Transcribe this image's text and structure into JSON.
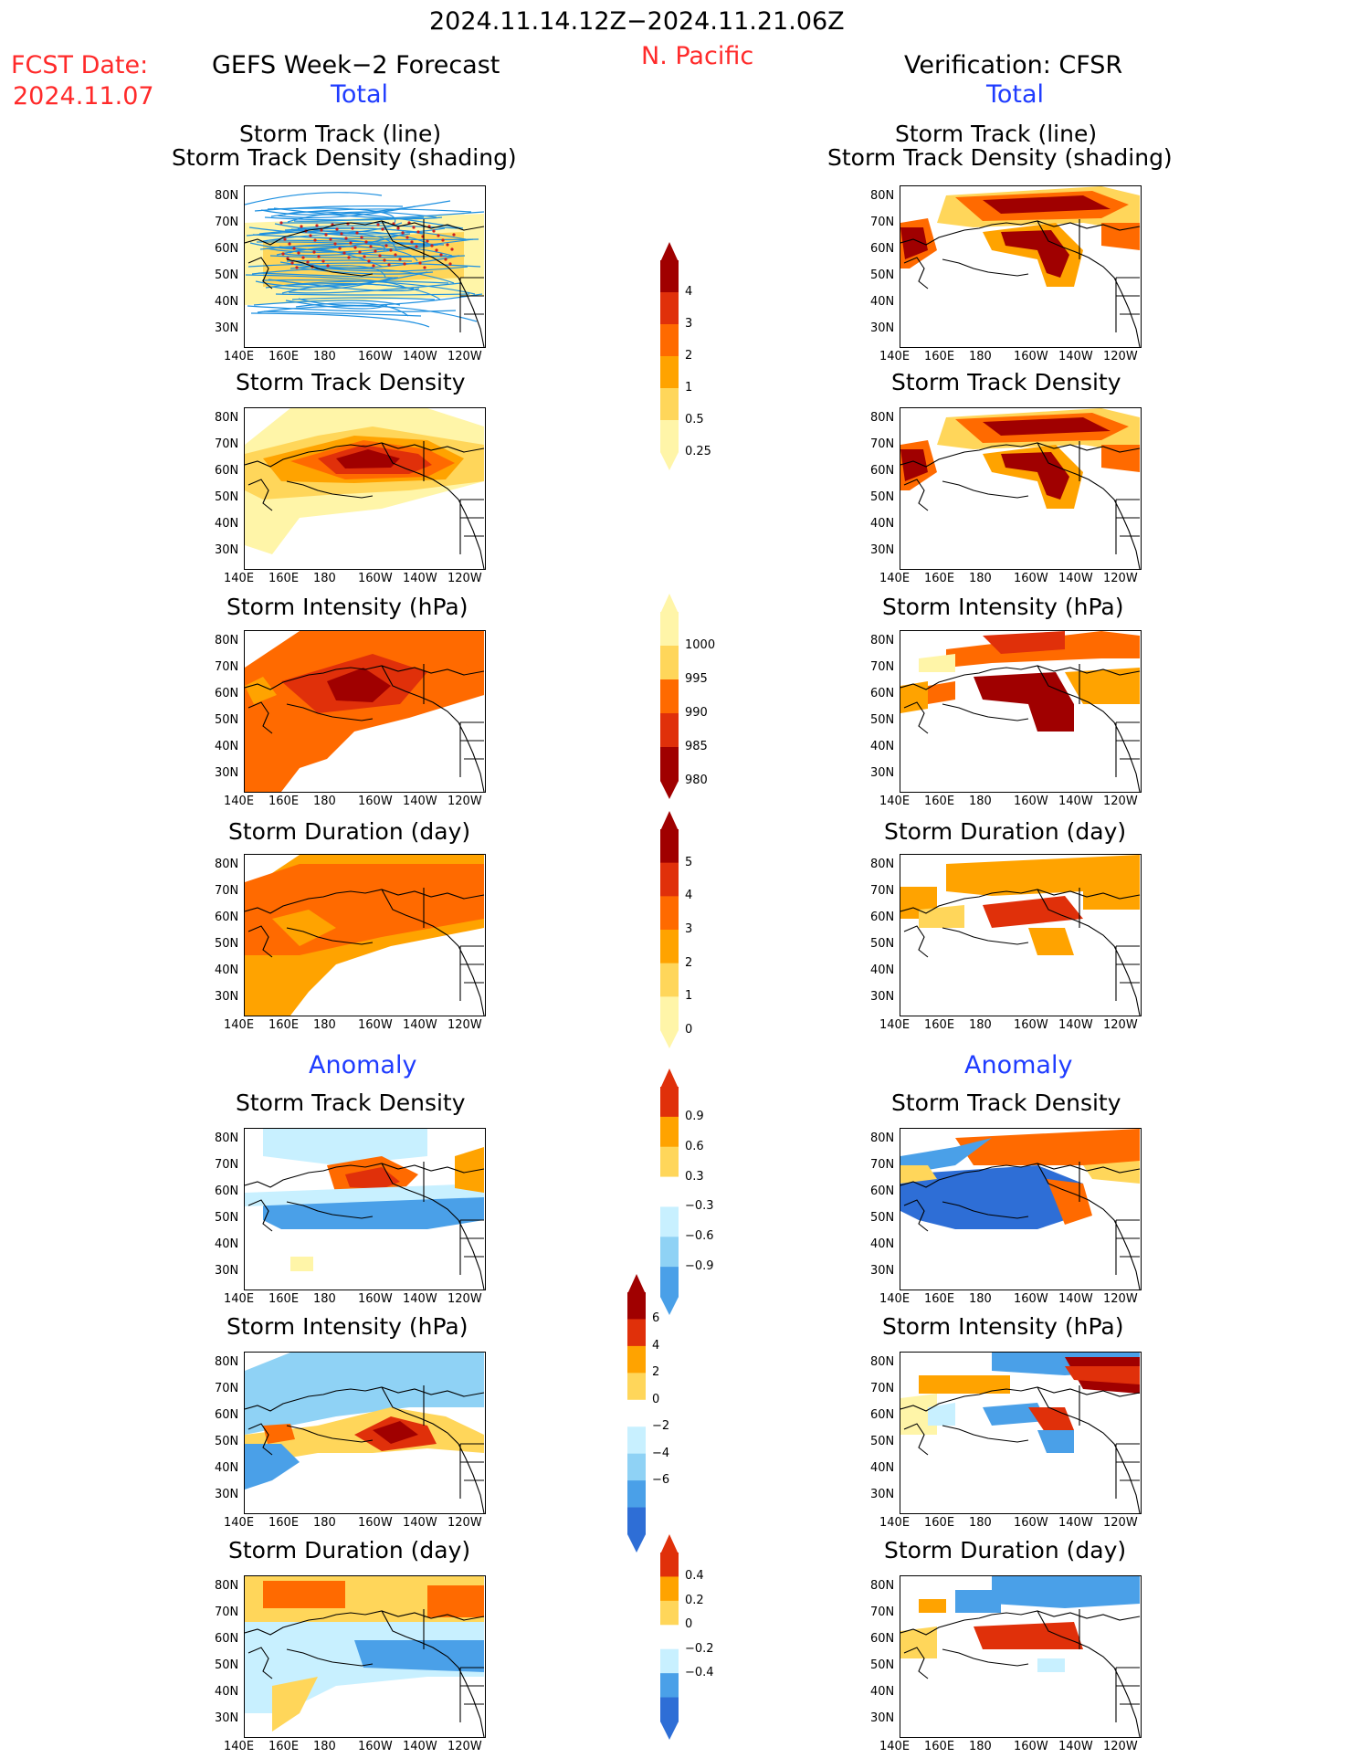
{
  "header": {
    "date_range": "2024.11.14.12Z−2024.11.21.06Z",
    "region": "N. Pacific",
    "fcst_label": "FCST Date:",
    "fcst_date": "2024.11.07",
    "left_title": "GEFS Week−2 Forecast",
    "right_title": "Verification: CFSR",
    "total_label": "Total",
    "anomaly_label": "Anomaly"
  },
  "panel_titles": {
    "track_line": "Storm Track (line)",
    "track_density_shading": "Storm Track Density (shading)",
    "track_density": "Storm Track Density",
    "intensity": "Storm Intensity (hPa)",
    "duration": "Storm Duration (day)"
  },
  "axes": {
    "lat_ticks": [
      "80N",
      "70N",
      "60N",
      "50N",
      "40N",
      "30N"
    ],
    "lon_ticks": [
      "140E",
      "160E",
      "180",
      "160W",
      "140W",
      "120W"
    ]
  },
  "colorbars": {
    "density_total": [
      "4",
      "3",
      "2",
      "1",
      "0.5",
      "0.25"
    ],
    "intensity_total": [
      "1000",
      "995",
      "990",
      "985",
      "980"
    ],
    "duration_total": [
      "5",
      "4",
      "3",
      "2",
      "1",
      "0"
    ],
    "density_anom": [
      "0.9",
      "0.6",
      "0.3",
      "−0.3",
      "−0.6",
      "−0.9"
    ],
    "intensity_anom": [
      "6",
      "4",
      "2",
      "0",
      "−2",
      "−4",
      "−6"
    ],
    "duration_anom": [
      "0.4",
      "0.2",
      "0",
      "−0.2",
      "−0.4"
    ]
  },
  "colors": {
    "warm_scale": [
      "#fff5a8",
      "#ffd65a",
      "#ffa300",
      "#ff6a00",
      "#e0300a",
      "#a00000"
    ],
    "cool_scale": [
      "#c8f0ff",
      "#8fd2f5",
      "#4aa0e8",
      "#2e6ed6"
    ],
    "track_line": "#1e90e0",
    "forecast_track_dots": "#cc2020"
  }
}
